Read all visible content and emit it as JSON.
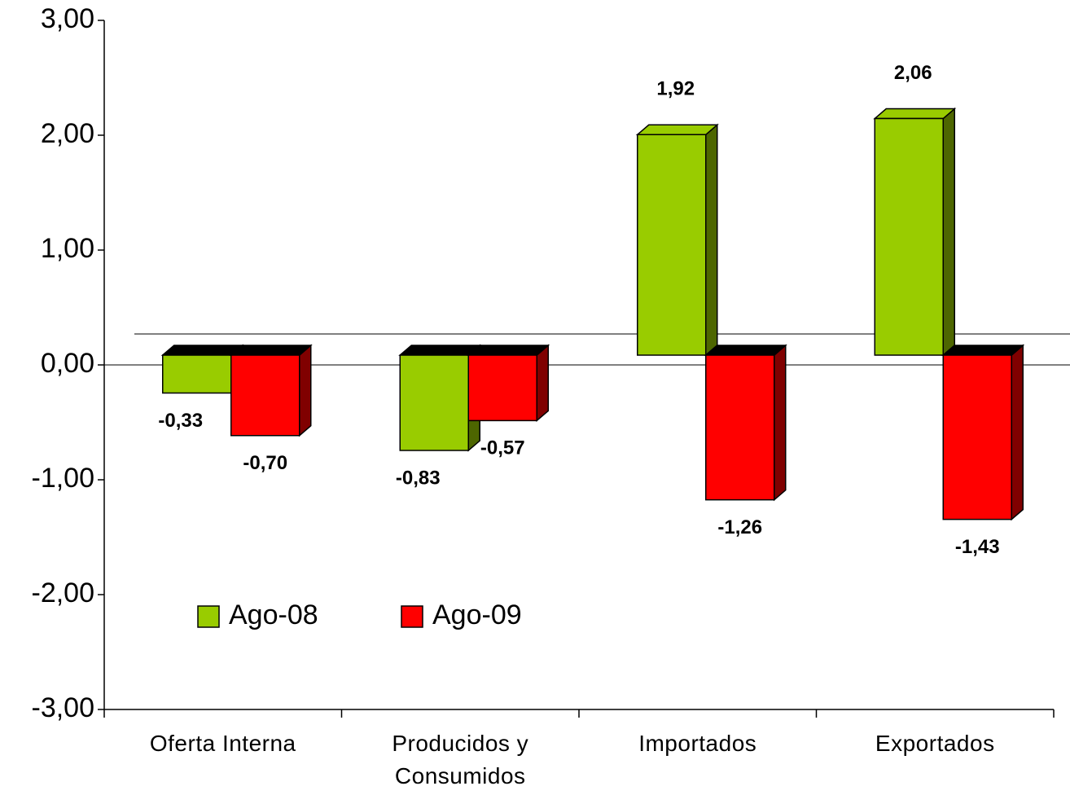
{
  "chart_data": {
    "type": "bar3d",
    "categories": [
      "Oferta Interna",
      "Producidos y Consumidos",
      "Importados",
      "Exportados"
    ],
    "series": [
      {
        "name": "Ago-08",
        "color": "#99cc00",
        "values": [
          -0.33,
          -0.83,
          1.92,
          2.06
        ],
        "value_labels": [
          "-0,33",
          "-0,83",
          "1,92",
          "2,06"
        ]
      },
      {
        "name": "Ago-09",
        "color": "#ff0000",
        "values": [
          -0.7,
          -0.57,
          -1.26,
          -1.43
        ],
        "value_labels": [
          "-0,70",
          "-0,57",
          "-1,26",
          "-1,43"
        ]
      }
    ],
    "ylim": [
      -3,
      3
    ],
    "yticks": [
      {
        "value": -3,
        "label": "-3,00"
      },
      {
        "value": -2,
        "label": "-2,00"
      },
      {
        "value": -1,
        "label": "-1,00"
      },
      {
        "value": 0,
        "label": "0,00"
      },
      {
        "value": 1,
        "label": "1,00"
      },
      {
        "value": 2,
        "label": "2,00"
      },
      {
        "value": 3,
        "label": "3,00"
      }
    ]
  }
}
